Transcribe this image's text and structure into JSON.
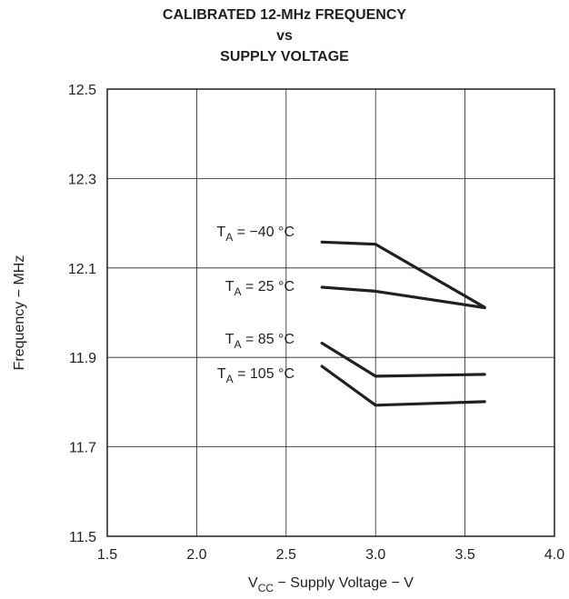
{
  "title": {
    "line1": "CALIBRATED 12-MHz FREQUENCY",
    "line2": "vs",
    "line3": "SUPPLY VOLTAGE"
  },
  "chart_data": {
    "type": "line",
    "title": "CALIBRATED 12-MHz FREQUENCY vs SUPPLY VOLTAGE",
    "xlabel": {
      "main": "V",
      "sub": "CC",
      "rest": " − Supply Voltage − V"
    },
    "ylabel": "Frequency − MHz",
    "xlim": [
      1.5,
      4.0
    ],
    "ylim": [
      11.5,
      12.5
    ],
    "xticks": [
      "1.5",
      "2.0",
      "2.5",
      "3.0",
      "3.5",
      "4.0"
    ],
    "yticks": [
      "11.5",
      "11.7",
      "11.9",
      "12.1",
      "12.3",
      "12.5"
    ],
    "grid": true,
    "series": [
      {
        "name": "T_A = −40 °C",
        "label_main": "T",
        "label_sub": "A",
        "label_rest": " = −40 °C",
        "x": [
          2.7,
          3.0,
          3.61
        ],
        "y": [
          12.158,
          12.153,
          12.012
        ]
      },
      {
        "name": "T_A = 25 °C",
        "label_main": "T",
        "label_sub": "A",
        "label_rest": " = 25 °C",
        "x": [
          2.7,
          3.0,
          3.61
        ],
        "y": [
          12.057,
          12.048,
          12.011
        ]
      },
      {
        "name": "T_A = 85 °C",
        "label_main": "T",
        "label_sub": "A",
        "label_rest": " = 85 °C",
        "x": [
          2.7,
          3.0,
          3.61
        ],
        "y": [
          11.932,
          11.858,
          11.862
        ]
      },
      {
        "name": "T_A = 105 °C",
        "label_main": "T",
        "label_sub": "A",
        "label_rest": " = 105 °C",
        "x": [
          2.7,
          3.0,
          3.61
        ],
        "y": [
          11.88,
          11.793,
          11.801
        ]
      }
    ],
    "line_color": "#231f20"
  }
}
